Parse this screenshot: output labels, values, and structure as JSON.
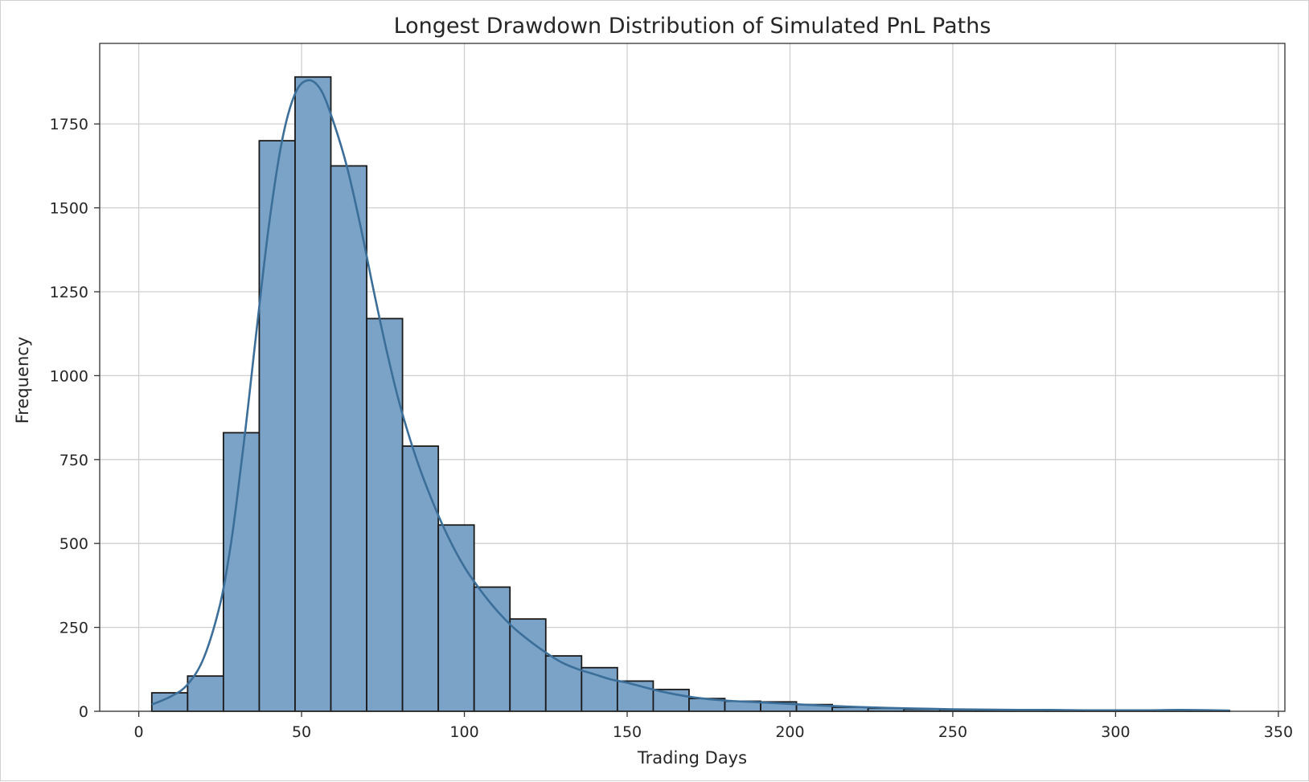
{
  "chart_data": {
    "type": "bar",
    "subtype": "histogram",
    "title": "Longest Drawdown Distribution of Simulated PnL Paths",
    "xlabel": "Trading Days",
    "ylabel": "Frequency",
    "xlim": [
      -12,
      352
    ],
    "ylim": [
      0,
      1990
    ],
    "xticks": [
      0,
      50,
      100,
      150,
      200,
      250,
      300,
      350
    ],
    "yticks": [
      0,
      250,
      500,
      750,
      1000,
      1250,
      1500,
      1750
    ],
    "grid": true,
    "bar_color": "#7ba3c7",
    "bar_edge_color": "#1a1a1a",
    "kde_color": "#3b6e99",
    "bins": [
      {
        "x0": 4,
        "x1": 15,
        "count": 55
      },
      {
        "x0": 15,
        "x1": 26,
        "count": 105
      },
      {
        "x0": 26,
        "x1": 37,
        "count": 830
      },
      {
        "x0": 37,
        "x1": 48,
        "count": 1700
      },
      {
        "x0": 48,
        "x1": 59,
        "count": 1890
      },
      {
        "x0": 59,
        "x1": 70,
        "count": 1625
      },
      {
        "x0": 70,
        "x1": 81,
        "count": 1170
      },
      {
        "x0": 81,
        "x1": 92,
        "count": 790
      },
      {
        "x0": 92,
        "x1": 103,
        "count": 555
      },
      {
        "x0": 103,
        "x1": 114,
        "count": 370
      },
      {
        "x0": 114,
        "x1": 125,
        "count": 275
      },
      {
        "x0": 125,
        "x1": 136,
        "count": 165
      },
      {
        "x0": 136,
        "x1": 147,
        "count": 130
      },
      {
        "x0": 147,
        "x1": 158,
        "count": 90
      },
      {
        "x0": 158,
        "x1": 169,
        "count": 65
      },
      {
        "x0": 169,
        "x1": 180,
        "count": 38
      },
      {
        "x0": 180,
        "x1": 191,
        "count": 30
      },
      {
        "x0": 191,
        "x1": 202,
        "count": 28
      },
      {
        "x0": 202,
        "x1": 213,
        "count": 20
      },
      {
        "x0": 213,
        "x1": 224,
        "count": 12
      },
      {
        "x0": 224,
        "x1": 235,
        "count": 9
      },
      {
        "x0": 235,
        "x1": 246,
        "count": 6
      },
      {
        "x0": 246,
        "x1": 257,
        "count": 5
      },
      {
        "x0": 257,
        "x1": 268,
        "count": 4
      },
      {
        "x0": 268,
        "x1": 279,
        "count": 3
      },
      {
        "x0": 279,
        "x1": 290,
        "count": 3
      },
      {
        "x0": 290,
        "x1": 301,
        "count": 2
      },
      {
        "x0": 301,
        "x1": 312,
        "count": 2
      },
      {
        "x0": 312,
        "x1": 323,
        "count": 3
      },
      {
        "x0": 323,
        "x1": 335,
        "count": 2
      }
    ],
    "kde": {
      "x": [
        4,
        10,
        15,
        20,
        25,
        28,
        30,
        33,
        36,
        40,
        44,
        48,
        52,
        56,
        60,
        64,
        68,
        72,
        76,
        80,
        85,
        90,
        95,
        100,
        105,
        110,
        115,
        120,
        125,
        130,
        135,
        140,
        145,
        150,
        160,
        170,
        180,
        190,
        200,
        210,
        220,
        230,
        240,
        250,
        260,
        270,
        280,
        290,
        300,
        310,
        320,
        330,
        335
      ],
      "y": [
        20,
        45,
        80,
        160,
        320,
        480,
        620,
        860,
        1120,
        1450,
        1700,
        1840,
        1880,
        1850,
        1750,
        1620,
        1450,
        1260,
        1080,
        920,
        760,
        630,
        520,
        430,
        360,
        300,
        250,
        210,
        175,
        145,
        125,
        110,
        95,
        85,
        60,
        42,
        32,
        27,
        22,
        17,
        13,
        10,
        8,
        6,
        5,
        4,
        4,
        3,
        3,
        3,
        4,
        3,
        2
      ]
    }
  }
}
